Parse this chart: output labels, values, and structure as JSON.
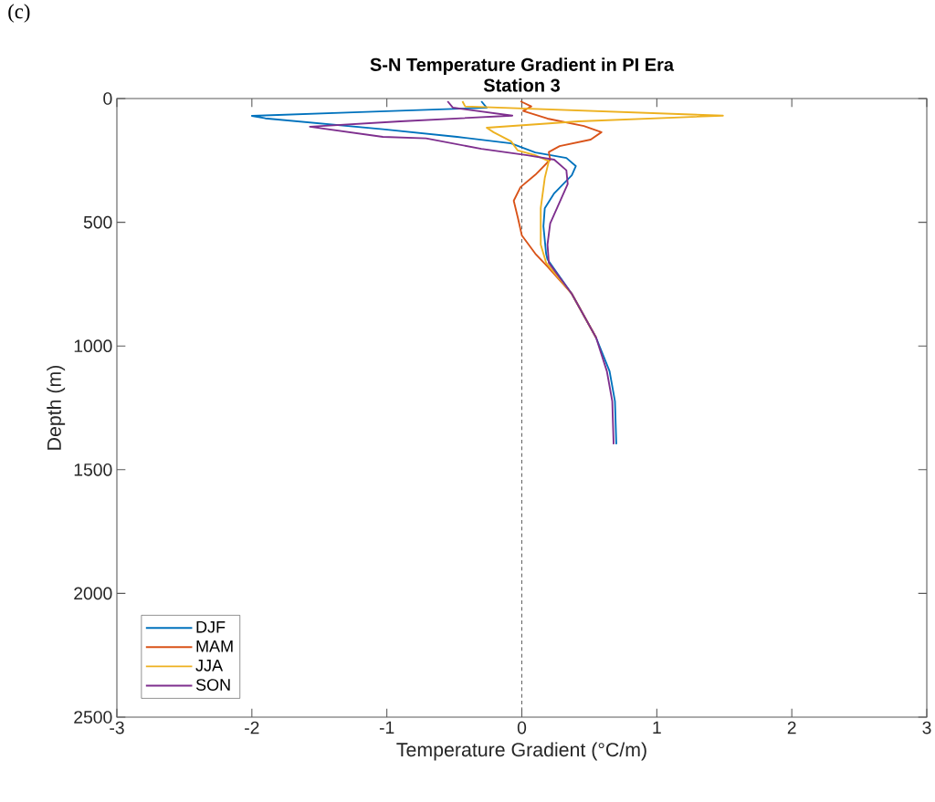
{
  "chart_data": {
    "type": "line",
    "title": "S-N Temperature Gradient in PI Era",
    "subtitle": "Station 3",
    "xlabel": "Temperature Gradient (°C/m)",
    "ylabel": "Depth (m)",
    "annotations": [
      "(c)"
    ],
    "xlim": [
      -3,
      3
    ],
    "xticks": [
      -3,
      -2,
      -1,
      0,
      1,
      2,
      3
    ],
    "ylim": [
      2500,
      0
    ],
    "yticks": [
      0,
      500,
      1000,
      1500,
      2000,
      2500
    ],
    "grid": false,
    "legend": "bottom left",
    "marker": "none",
    "line_style": "solid",
    "ref_lines": [
      {
        "axis": "x",
        "value": 0,
        "color": "#555555",
        "line_style": "dashed"
      }
    ],
    "series": [
      {
        "name": "DJF",
        "color": "#0072bd",
        "x": [
          -0.3,
          -0.26,
          -1.2,
          -2.0,
          -1.9,
          -1.03,
          -0.48,
          -0.08,
          0.1,
          0.33,
          0.4,
          0.37,
          0.24,
          0.17,
          0.16,
          0.18,
          0.19,
          0.37,
          0.55,
          0.65,
          0.69,
          0.7
        ],
        "values": [
          11,
          37,
          55,
          70,
          80,
          124,
          155,
          181,
          218,
          240,
          273,
          310,
          383,
          443,
          516,
          627,
          650,
          789,
          966,
          1102,
          1224,
          1397
        ]
      },
      {
        "name": "MAM",
        "color": "#d95319",
        "x": [
          -0.01,
          0.07,
          0.01,
          0.19,
          0.46,
          0.59,
          0.51,
          0.28,
          0.2,
          0.21,
          0.1,
          -0.01,
          -0.06,
          -0.03,
          0.0,
          0.1,
          0.19,
          0.37,
          0.55
        ],
        "values": [
          11,
          32,
          50,
          81,
          111,
          136,
          166,
          192,
          216,
          247,
          308,
          358,
          413,
          480,
          553,
          627,
          679,
          789,
          966
        ]
      },
      {
        "name": "JJA",
        "color": "#edb120",
        "x": [
          -0.44,
          -0.42,
          1.49,
          0.42,
          -0.26,
          -0.21,
          -0.08,
          -0.03,
          0.1,
          0.2,
          0.17,
          0.14,
          0.14,
          0.18,
          0.37,
          0.55
        ],
        "values": [
          11,
          32,
          69,
          92,
          118,
          136,
          173,
          210,
          229,
          253,
          321,
          443,
          590,
          664,
          789,
          966
        ]
      },
      {
        "name": "SON",
        "color": "#7e2f8e",
        "x": [
          -0.55,
          -0.51,
          -0.07,
          -0.9,
          -1.57,
          -1.03,
          -0.71,
          -0.3,
          0.04,
          0.24,
          0.33,
          0.34,
          0.28,
          0.21,
          0.19,
          0.2,
          0.37,
          0.55,
          0.63,
          0.67,
          0.68
        ],
        "values": [
          11,
          37,
          69,
          92,
          114,
          155,
          161,
          203,
          229,
          247,
          290,
          345,
          419,
          505,
          590,
          664,
          789,
          966,
          1102,
          1224,
          1397
        ]
      }
    ]
  }
}
